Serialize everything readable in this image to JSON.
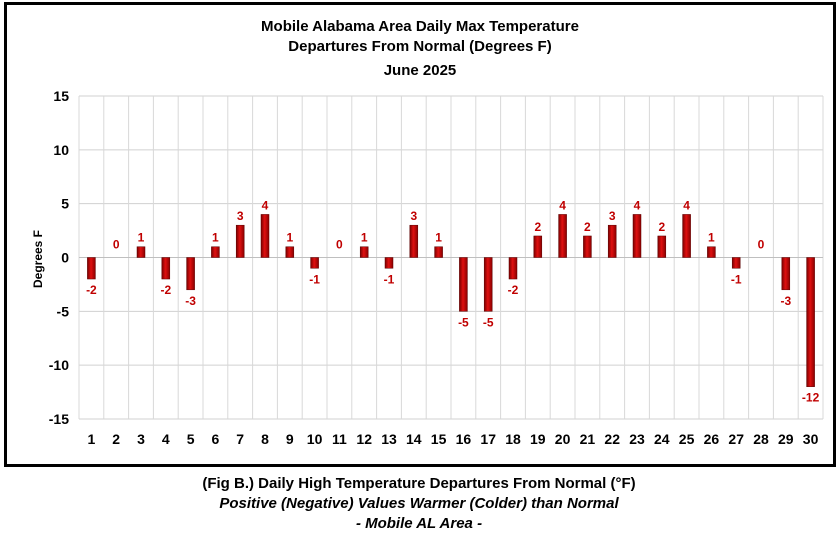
{
  "chart_data": {
    "type": "bar",
    "title": [
      "Mobile Alabama Area Daily Max Temperature",
      "Departures From Normal (Degrees F)",
      "June 2025"
    ],
    "xlabel": "",
    "ylabel": "Degrees F",
    "ylim": [
      -15,
      15
    ],
    "yticks": [
      15,
      10,
      5,
      0,
      -5,
      -10,
      -15
    ],
    "grid": true,
    "legend": "none",
    "bar_color": "#c00000",
    "label_color": "#c00000",
    "categories": [
      "1",
      "2",
      "3",
      "4",
      "5",
      "6",
      "7",
      "8",
      "9",
      "10",
      "11",
      "12",
      "13",
      "14",
      "15",
      "16",
      "17",
      "18",
      "19",
      "20",
      "21",
      "22",
      "23",
      "24",
      "25",
      "26",
      "27",
      "28",
      "29",
      "30"
    ],
    "values": [
      -2,
      0,
      1,
      -2,
      -3,
      1,
      3,
      4,
      1,
      -1,
      0,
      1,
      -1,
      3,
      1,
      -5,
      -5,
      -2,
      2,
      4,
      2,
      3,
      4,
      2,
      4,
      1,
      -1,
      0,
      -3,
      -12
    ]
  },
  "caption": {
    "line1": "(Fig B.) Daily High Temperature Departures From Normal (°F)",
    "line2": "Positive (Negative) Values Warmer (Colder) than Normal",
    "line3": "- Mobile AL Area -"
  }
}
